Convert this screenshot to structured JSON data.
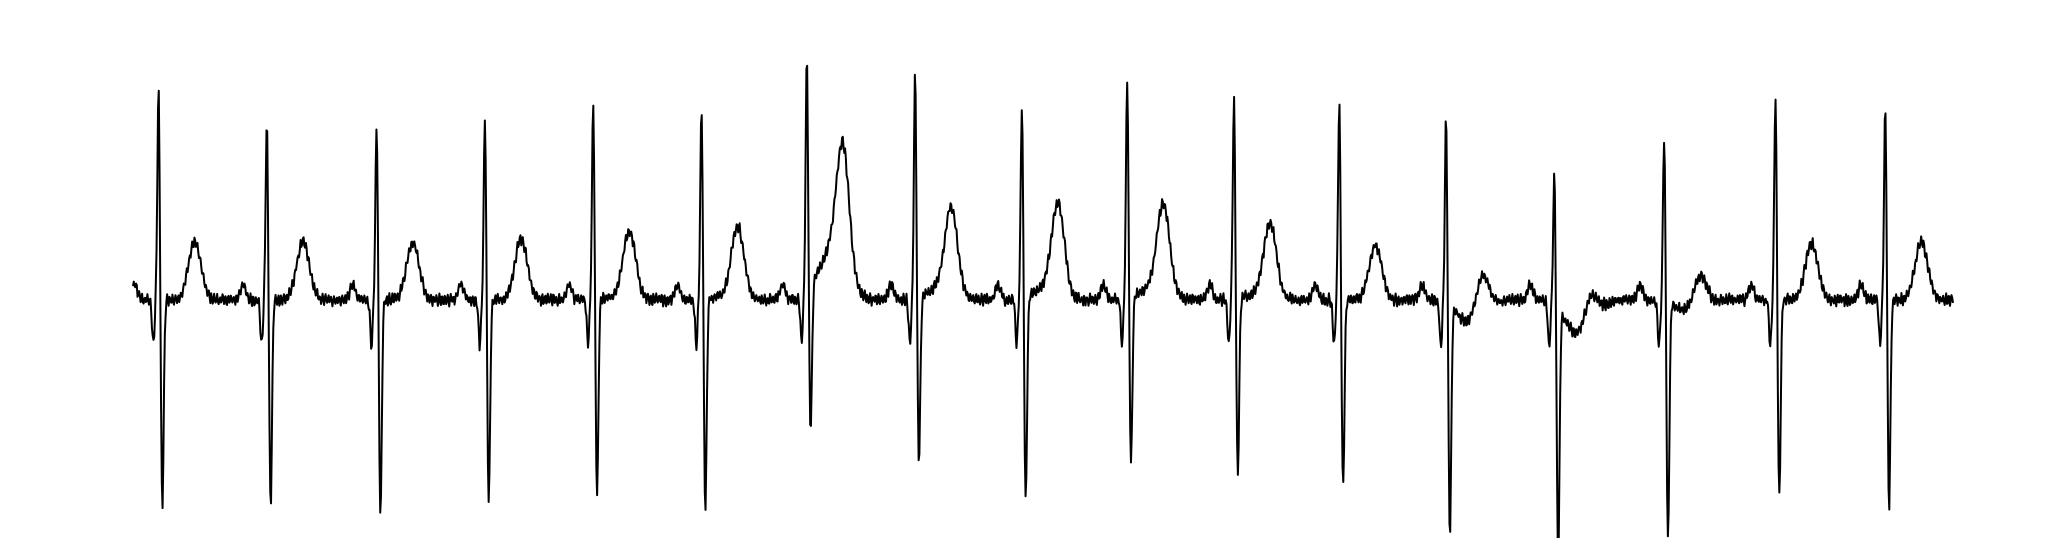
{
  "chart_data": {
    "type": "line",
    "title": "",
    "xlabel": "",
    "ylabel": "",
    "axes_visible": false,
    "grid": false,
    "legend": "none",
    "ylim": [
      -1.55,
      1.55
    ],
    "baseline": -0.23,
    "series": [
      {
        "line_color": "#000000",
        "beats": [
          {
            "r_time": 0.17,
            "r_amp": 1.22,
            "s_amp": -1.32,
            "t_amp": 0.38,
            "st_level": 0.0
          },
          {
            "r_time": 0.89,
            "r_amp": 1.0,
            "s_amp": -1.32,
            "t_amp": 0.38,
            "st_level": 0.0
          },
          {
            "r_time": 1.62,
            "r_amp": 0.97,
            "s_amp": -1.38,
            "t_amp": 0.38,
            "st_level": 0.0
          },
          {
            "r_time": 2.34,
            "r_amp": 1.02,
            "s_amp": -1.3,
            "t_amp": 0.4,
            "st_level": 0.0
          },
          {
            "r_time": 3.06,
            "r_amp": 1.12,
            "s_amp": -1.25,
            "t_amp": 0.44,
            "st_level": 0.02
          },
          {
            "r_time": 3.78,
            "r_amp": 1.09,
            "s_amp": -1.35,
            "t_amp": 0.47,
            "st_level": 0.03
          },
          {
            "r_time": 4.48,
            "r_amp": 1.37,
            "s_amp": -0.9,
            "t_amp": 0.8,
            "st_level": 0.4
          },
          {
            "r_time": 5.2,
            "r_amp": 1.3,
            "s_amp": -1.05,
            "t_amp": 0.55,
            "st_level": 0.1
          },
          {
            "r_time": 5.91,
            "r_amp": 1.1,
            "s_amp": -1.3,
            "t_amp": 0.58,
            "st_level": 0.1
          },
          {
            "r_time": 6.61,
            "r_amp": 1.26,
            "s_amp": -1.05,
            "t_amp": 0.58,
            "st_level": 0.1
          },
          {
            "r_time": 7.32,
            "r_amp": 1.14,
            "s_amp": -1.12,
            "t_amp": 0.48,
            "st_level": 0.05
          },
          {
            "r_time": 8.02,
            "r_amp": 1.12,
            "s_amp": -1.2,
            "t_amp": 0.36,
            "st_level": 0.0
          },
          {
            "r_time": 8.73,
            "r_amp": 1.05,
            "s_amp": -1.47,
            "t_amp": 0.28,
            "st_level": -0.2
          },
          {
            "r_time": 9.45,
            "r_amp": 0.7,
            "s_amp": -1.62,
            "t_amp": 0.2,
            "st_level": -0.3
          },
          {
            "r_time": 10.18,
            "r_amp": 0.92,
            "s_amp": -1.52,
            "t_amp": 0.22,
            "st_level": -0.1
          },
          {
            "r_time": 10.92,
            "r_amp": 1.17,
            "s_amp": -1.27,
            "t_amp": 0.37,
            "st_level": 0.0
          },
          {
            "r_time": 11.65,
            "r_amp": 1.1,
            "s_amp": -1.32,
            "t_amp": 0.38,
            "st_level": 0.0
          }
        ],
        "rr_interval": 0.72,
        "duration": 12.1,
        "noise": 0.03
      }
    ]
  }
}
